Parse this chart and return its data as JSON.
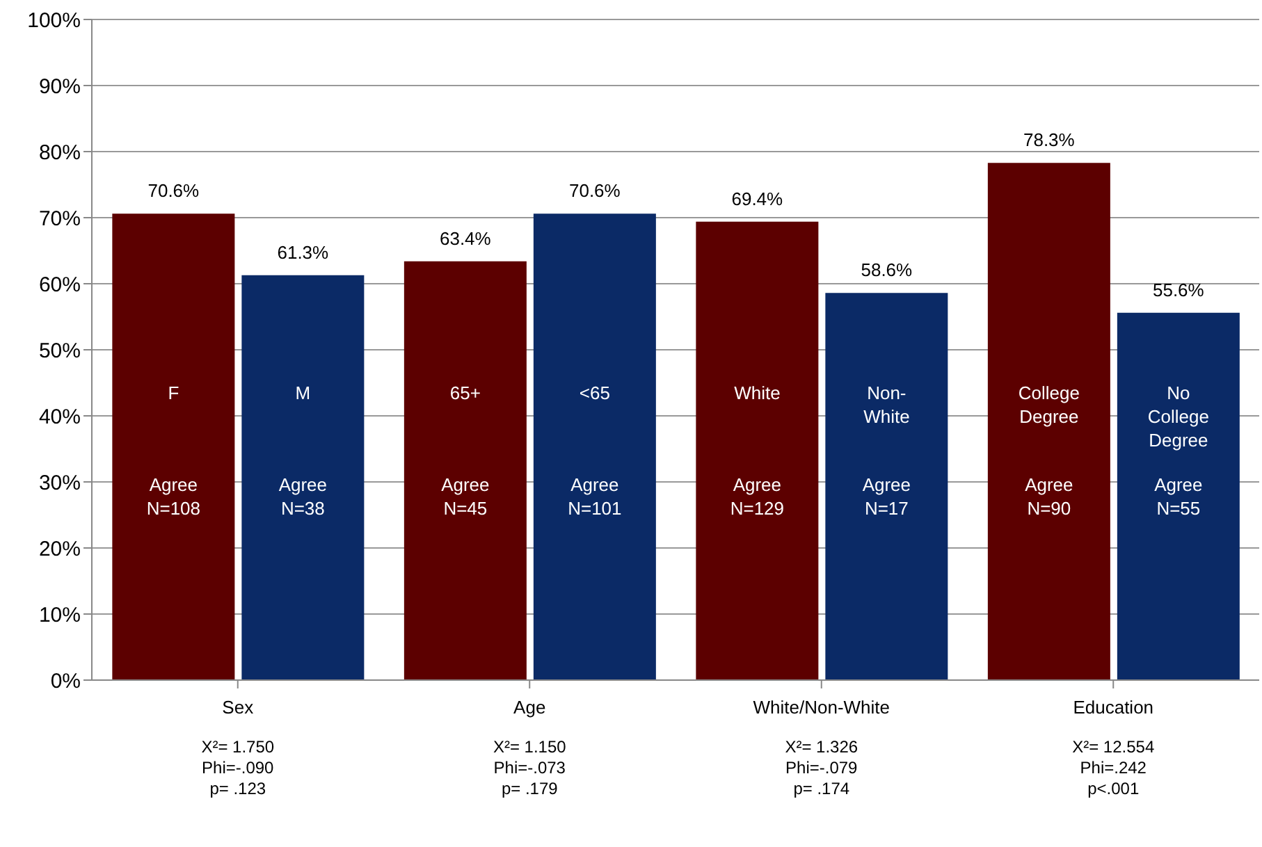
{
  "chart_data": {
    "type": "bar",
    "categories": [
      "Sex",
      "Age",
      "White/Non-White",
      "Education"
    ],
    "series": [
      {
        "color": "#5c0000",
        "values": [
          70.6,
          63.4,
          69.4,
          78.3
        ],
        "value_labels": [
          "70.6%",
          "63.4%",
          "69.4%",
          "78.3%"
        ]
      },
      {
        "color": "#0b2a66",
        "values": [
          61.3,
          70.6,
          58.6,
          55.6
        ],
        "value_labels": [
          "61.3%",
          "70.6%",
          "58.6%",
          "55.6%"
        ]
      }
    ],
    "ylim": [
      0,
      100
    ],
    "yticks": [
      {
        "value": 0,
        "label": "0%"
      },
      {
        "value": 10,
        "label": "10%"
      },
      {
        "value": 20,
        "label": "20%"
      },
      {
        "value": 30,
        "label": "30%"
      },
      {
        "value": 40,
        "label": "40%"
      },
      {
        "value": 50,
        "label": "50%"
      },
      {
        "value": 60,
        "label": "60%"
      },
      {
        "value": 70,
        "label": "70%"
      },
      {
        "value": 80,
        "label": "80%"
      },
      {
        "value": 90,
        "label": "90%"
      },
      {
        "value": 100,
        "label": "100%"
      }
    ],
    "grid": "y",
    "legend": false,
    "annotations": [
      "X²= 1.750\nPhi=-.090\np= .123",
      "X²= 1.150\nPhi=-.073\np= .179",
      "X²= 1.326\nPhi=-.079\np= .174",
      "X²= 12.554\nPhi=.242\np<.001",
      "F",
      "Agree\nN=108",
      "M",
      "Agree\nN=38",
      "65+",
      "Agree\nN=45",
      "<65",
      "Agree\nN=101",
      "White",
      "Agree\nN=129",
      "Non-\nWhite",
      "Agree\nN=17",
      "College\nDegree",
      "Agree\nN=90",
      "No\nCollege\nDegree",
      "Agree\nN=55"
    ]
  }
}
